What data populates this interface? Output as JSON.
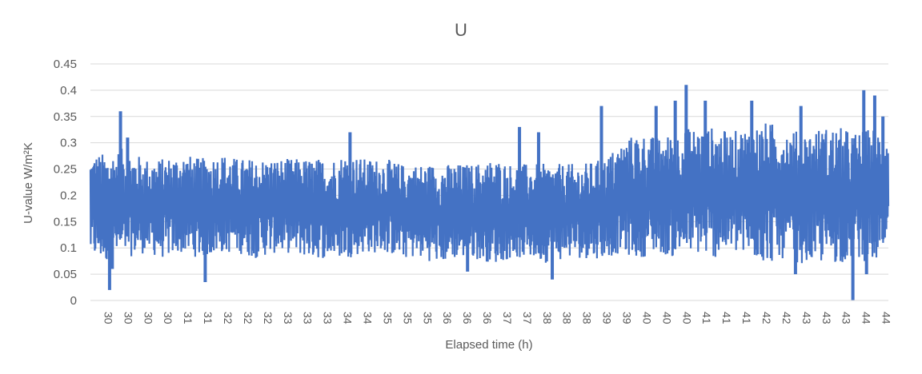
{
  "chart_data": {
    "type": "line",
    "title": "U",
    "xlabel": "Elapsed time (h)",
    "ylabel": "U-value W/m²K",
    "ylim": [
      0,
      0.45
    ],
    "y_ticks": [
      "0",
      "0.05",
      "0.1",
      "0.15",
      "0.2",
      "0.25",
      "0.3",
      "0.35",
      "0.4",
      "0.45"
    ],
    "x_tick_labels": [
      "30",
      "30",
      "30",
      "30",
      "31",
      "31",
      "32",
      "32",
      "32",
      "33",
      "33",
      "33",
      "34",
      "34",
      "35",
      "35",
      "35",
      "36",
      "36",
      "36",
      "37",
      "37",
      "38",
      "38",
      "38",
      "39",
      "39",
      "40",
      "40",
      "40",
      "41",
      "41",
      "41",
      "42",
      "42",
      "43",
      "43",
      "43",
      "44",
      "44"
    ],
    "xlim": [
      30,
      44.6
    ],
    "grid": "horizontal",
    "legend": "none",
    "color": "#4472C4",
    "series": [
      {
        "x": [
          30,
          30.3,
          30.6,
          31,
          31.3,
          31.7,
          32,
          32.4,
          32.7,
          33,
          33.4,
          33.7,
          34,
          34.4,
          34.7,
          35,
          35.4,
          35.7,
          36,
          36.4,
          36.7,
          37,
          37.4,
          37.7,
          38,
          38.4,
          38.7,
          39,
          39.4,
          39.7,
          40,
          40.4,
          40.7,
          41,
          41.4,
          41.7,
          42,
          42.4,
          42.7,
          43,
          43.4,
          43.7,
          44,
          44.3,
          44.6
        ],
        "y": [
          0.18,
          0.2,
          0.16,
          0.19,
          0.17,
          0.2,
          0.18,
          0.16,
          0.19,
          0.17,
          0.18,
          0.2,
          0.17,
          0.19,
          0.16,
          0.18,
          0.2,
          0.17,
          0.18,
          0.16,
          0.19,
          0.17,
          0.18,
          0.2,
          0.16,
          0.17,
          0.19,
          0.16,
          0.18,
          0.21,
          0.17,
          0.2,
          0.16,
          0.22,
          0.18,
          0.2,
          0.17,
          0.21,
          0.19,
          0.18,
          0.2,
          0.17,
          0.19,
          0.21,
          0.2
        ],
        "band_low": [
          0.08,
          0.07,
          0.08,
          0.09,
          0.08,
          0.09,
          0.08,
          0.09,
          0.09,
          0.08,
          0.09,
          0.09,
          0.08,
          0.08,
          0.08,
          0.09,
          0.09,
          0.08,
          0.08,
          0.07,
          0.08,
          0.08,
          0.07,
          0.08,
          0.08,
          0.07,
          0.08,
          0.08,
          0.08,
          0.09,
          0.08,
          0.09,
          0.08,
          0.09,
          0.08,
          0.09,
          0.08,
          0.07,
          0.08,
          0.07,
          0.07,
          0.07,
          0.08,
          0.07,
          0.08
        ],
        "band_high": [
          0.28,
          0.28,
          0.29,
          0.27,
          0.27,
          0.28,
          0.27,
          0.28,
          0.27,
          0.27,
          0.27,
          0.27,
          0.27,
          0.27,
          0.28,
          0.27,
          0.27,
          0.26,
          0.26,
          0.26,
          0.26,
          0.26,
          0.27,
          0.26,
          0.26,
          0.26,
          0.26,
          0.26,
          0.27,
          0.3,
          0.32,
          0.31,
          0.32,
          0.33,
          0.33,
          0.32,
          0.33,
          0.34,
          0.33,
          0.32,
          0.33,
          0.33,
          0.32,
          0.33,
          0.33
        ],
        "peaks": [
          {
            "x": 30.55,
            "y": 0.36
          },
          {
            "x": 30.68,
            "y": 0.31
          },
          {
            "x": 34.75,
            "y": 0.32
          },
          {
            "x": 37.85,
            "y": 0.33
          },
          {
            "x": 38.2,
            "y": 0.32
          },
          {
            "x": 39.35,
            "y": 0.37
          },
          {
            "x": 40.35,
            "y": 0.37
          },
          {
            "x": 40.7,
            "y": 0.38
          },
          {
            "x": 40.9,
            "y": 0.41
          },
          {
            "x": 41.25,
            "y": 0.38
          },
          {
            "x": 42.1,
            "y": 0.38
          },
          {
            "x": 43.0,
            "y": 0.37
          },
          {
            "x": 44.15,
            "y": 0.4
          },
          {
            "x": 44.35,
            "y": 0.39
          },
          {
            "x": 44.5,
            "y": 0.35
          }
        ],
        "troughs": [
          {
            "x": 30.35,
            "y": 0.02
          },
          {
            "x": 30.4,
            "y": 0.06
          },
          {
            "x": 32.1,
            "y": 0.035
          },
          {
            "x": 36.9,
            "y": 0.055
          },
          {
            "x": 38.45,
            "y": 0.04
          },
          {
            "x": 42.9,
            "y": 0.05
          },
          {
            "x": 43.95,
            "y": 0.0
          },
          {
            "x": 44.2,
            "y": 0.05
          }
        ]
      }
    ]
  }
}
